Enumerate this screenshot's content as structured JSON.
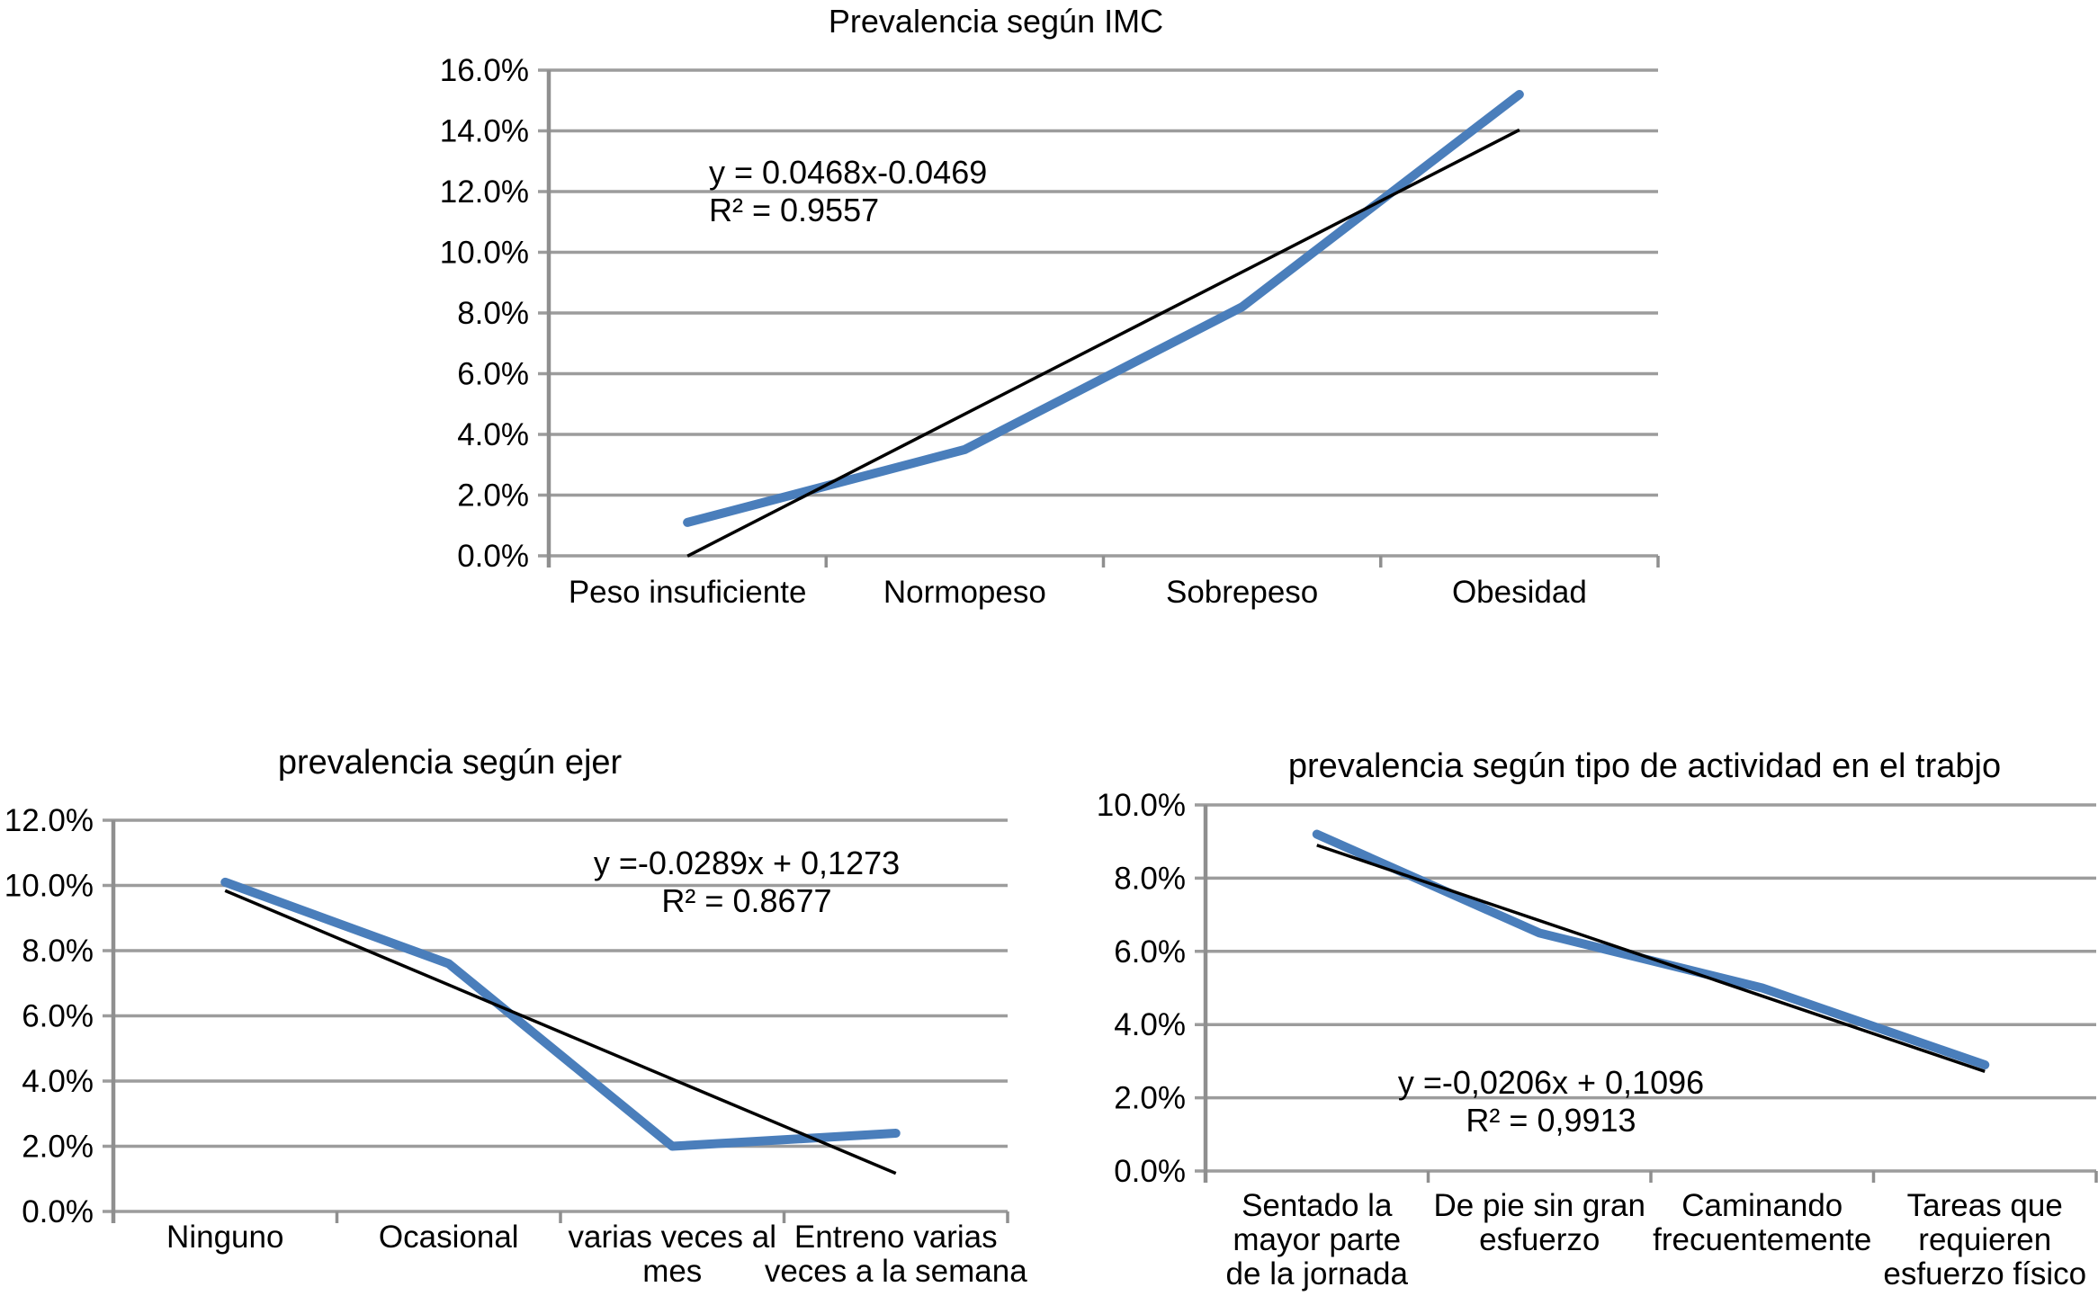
{
  "page": {
    "background_color": "#ffffff"
  },
  "styles": {
    "series_color": "#4a7ebb",
    "trendline_color": "#000000",
    "gridline_color": "#9c9c9c",
    "axis_color": "#8f8f8f",
    "text_color": "#000000"
  },
  "chart_data": [
    {
      "id": "imc",
      "type": "line",
      "title": "Prevalencia según IMC",
      "categories": [
        "Peso insuficiente",
        "Normopeso",
        "Sobrepeso",
        "Obesidad"
      ],
      "series": [
        {
          "name": "Prevalencia",
          "values_percent": [
            1.1,
            3.5,
            8.2,
            15.2
          ]
        }
      ],
      "trendline": {
        "equation_label": "y = 0.0468x-0.0469",
        "r2_label": "R² = 0.9557",
        "slope_percent_per_category": 4.68,
        "intercept_percent": -4.69
      },
      "y_axis": {
        "unit": "percent",
        "min_percent": 0,
        "max_percent": 16,
        "step_percent": 2,
        "tick_labels": [
          "0.0%",
          "2.0%",
          "4.0%",
          "6.0%",
          "8.0%",
          "10.0%",
          "12.0%",
          "14.0%",
          "16.0%"
        ]
      },
      "grid": true,
      "legend": "none"
    },
    {
      "id": "ejercicio",
      "type": "line",
      "title": "prevalencia según ejer",
      "categories": [
        "Ninguno",
        "Ocasional",
        "varias veces al\nmes",
        "Entreno varias\nveces a la semana"
      ],
      "series": [
        {
          "name": "Prevalencia",
          "values_percent": [
            10.1,
            7.6,
            2.0,
            2.4
          ]
        }
      ],
      "trendline": {
        "equation_label": "y =-0.0289x + 0,1273",
        "r2_label": "R² = 0.8677",
        "slope_percent_per_category": -2.89,
        "intercept_percent": 12.73
      },
      "y_axis": {
        "unit": "percent",
        "min_percent": 0,
        "max_percent": 12,
        "step_percent": 2,
        "tick_labels": [
          "0.0%",
          "2.0%",
          "4.0%",
          "6.0%",
          "8.0%",
          "10.0%",
          "12.0%"
        ]
      },
      "grid": true,
      "legend": "none"
    },
    {
      "id": "trabajo",
      "type": "line",
      "title": "prevalencia según tipo de actividad en el trabjo",
      "categories": [
        "Sentado la\nmayor parte\nde la jornada",
        "De pie sin gran\nesfuerzo",
        "Caminando\nfrecuentemente",
        "Tareas que\nrequieren\nesfuerzo físico"
      ],
      "series": [
        {
          "name": "Prevalencia",
          "values_percent": [
            9.2,
            6.5,
            5.0,
            2.9
          ]
        }
      ],
      "trendline": {
        "equation_label": "y =-0,0206x + 0,1096",
        "r2_label": "R² = 0,9913",
        "slope_percent_per_category": -2.06,
        "intercept_percent": 10.96
      },
      "y_axis": {
        "unit": "percent",
        "min_percent": 0,
        "max_percent": 10,
        "step_percent": 2,
        "tick_labels": [
          "0.0%",
          "2.0%",
          "4.0%",
          "6.0%",
          "8.0%",
          "10.0%"
        ]
      },
      "grid": true,
      "legend": "none"
    }
  ]
}
